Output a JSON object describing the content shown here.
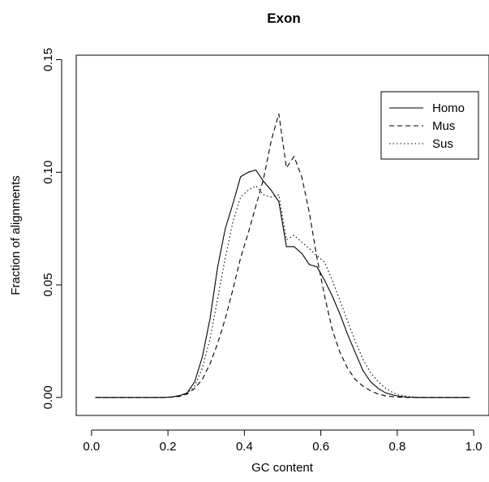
{
  "chart_data": {
    "type": "line",
    "title": "Exon",
    "xlabel": "GC content",
    "ylabel": "Fraction of alignments",
    "xlim": [
      -0.04,
      1.04
    ],
    "ylim": [
      -0.008,
      0.152
    ],
    "xticks": [
      0.0,
      0.2,
      0.4,
      0.6,
      0.8,
      1.0
    ],
    "xtick_labels": [
      "0.0",
      "0.2",
      "0.4",
      "0.6",
      "0.8",
      "1.0"
    ],
    "yticks": [
      0.0,
      0.05,
      0.1,
      0.15
    ],
    "ytick_labels": [
      "0.00",
      "0.05",
      "0.10",
      "0.15"
    ],
    "grid": false,
    "legend": "top-right",
    "series": [
      {
        "name": "Homo",
        "style": "solid",
        "x": [
          0.01,
          0.03,
          0.05,
          0.07,
          0.09,
          0.11,
          0.13,
          0.15,
          0.17,
          0.19,
          0.21,
          0.23,
          0.25,
          0.27,
          0.29,
          0.31,
          0.33,
          0.35,
          0.37,
          0.39,
          0.41,
          0.43,
          0.45,
          0.47,
          0.49,
          0.51,
          0.53,
          0.55,
          0.57,
          0.59,
          0.61,
          0.63,
          0.65,
          0.67,
          0.69,
          0.71,
          0.73,
          0.75,
          0.77,
          0.79,
          0.81,
          0.83,
          0.85,
          0.87,
          0.89,
          0.91,
          0.93,
          0.95,
          0.97,
          0.99
        ],
        "y": [
          0,
          0,
          0,
          0,
          0,
          0,
          0,
          0,
          0,
          0,
          0.0002,
          0.0008,
          0.002,
          0.007,
          0.018,
          0.035,
          0.058,
          0.075,
          0.086,
          0.098,
          0.1,
          0.101,
          0.096,
          0.092,
          0.087,
          0.067,
          0.067,
          0.064,
          0.059,
          0.058,
          0.052,
          0.045,
          0.037,
          0.028,
          0.02,
          0.012,
          0.007,
          0.004,
          0.002,
          0.001,
          0.0004,
          0.0001,
          0,
          0,
          0,
          0,
          0,
          0,
          0,
          0
        ]
      },
      {
        "name": "Mus",
        "style": "dashed",
        "x": [
          0.01,
          0.03,
          0.05,
          0.07,
          0.09,
          0.11,
          0.13,
          0.15,
          0.17,
          0.19,
          0.21,
          0.23,
          0.25,
          0.27,
          0.29,
          0.31,
          0.33,
          0.35,
          0.37,
          0.39,
          0.41,
          0.43,
          0.45,
          0.47,
          0.49,
          0.51,
          0.53,
          0.55,
          0.57,
          0.59,
          0.61,
          0.63,
          0.65,
          0.67,
          0.69,
          0.71,
          0.73,
          0.75,
          0.77,
          0.79,
          0.81,
          0.83,
          0.85,
          0.87,
          0.89,
          0.91,
          0.93,
          0.95,
          0.97,
          0.99
        ],
        "y": [
          0,
          0,
          0,
          0,
          0,
          0,
          0,
          0,
          0,
          0,
          0.0001,
          0.0005,
          0.0015,
          0.004,
          0.008,
          0.015,
          0.024,
          0.035,
          0.048,
          0.062,
          0.073,
          0.085,
          0.097,
          0.114,
          0.126,
          0.102,
          0.107,
          0.098,
          0.082,
          0.062,
          0.045,
          0.03,
          0.02,
          0.013,
          0.008,
          0.005,
          0.003,
          0.0015,
          0.0007,
          0.0003,
          0.0001,
          0,
          0,
          0,
          0,
          0,
          0,
          0,
          0,
          0
        ]
      },
      {
        "name": "Sus",
        "style": "dotted",
        "x": [
          0.01,
          0.03,
          0.05,
          0.07,
          0.09,
          0.11,
          0.13,
          0.15,
          0.17,
          0.19,
          0.21,
          0.23,
          0.25,
          0.27,
          0.29,
          0.31,
          0.33,
          0.35,
          0.37,
          0.39,
          0.41,
          0.43,
          0.45,
          0.47,
          0.49,
          0.51,
          0.53,
          0.55,
          0.57,
          0.59,
          0.61,
          0.63,
          0.65,
          0.67,
          0.69,
          0.71,
          0.73,
          0.75,
          0.77,
          0.79,
          0.81,
          0.83,
          0.85,
          0.87,
          0.89,
          0.91,
          0.93,
          0.95,
          0.97,
          0.99
        ],
        "y": [
          0,
          0,
          0,
          0,
          0,
          0,
          0,
          0,
          0,
          0,
          0.0002,
          0.0007,
          0.0018,
          0.005,
          0.013,
          0.026,
          0.044,
          0.062,
          0.078,
          0.089,
          0.092,
          0.094,
          0.09,
          0.089,
          0.09,
          0.07,
          0.072,
          0.069,
          0.066,
          0.063,
          0.06,
          0.052,
          0.043,
          0.034,
          0.025,
          0.017,
          0.011,
          0.007,
          0.004,
          0.002,
          0.001,
          0.0004,
          0.0001,
          0,
          0,
          0,
          0,
          0,
          0,
          0
        ]
      }
    ]
  }
}
